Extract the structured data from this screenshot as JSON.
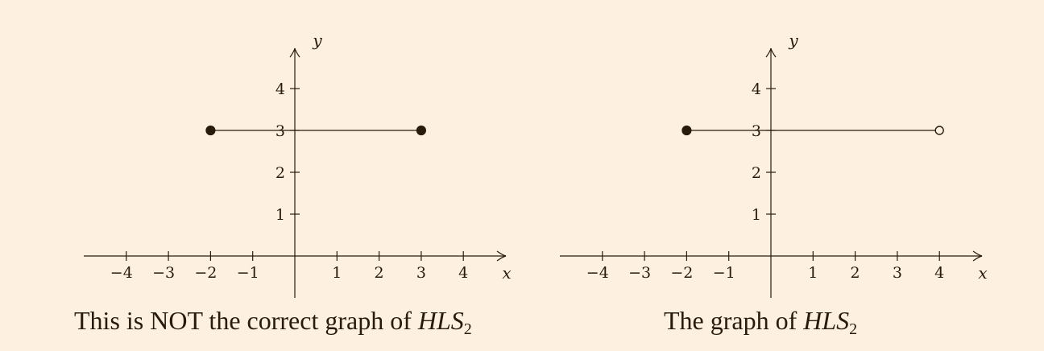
{
  "chart_data": [
    {
      "type": "line",
      "title": "",
      "xlabel": "x",
      "ylabel": "y",
      "xlim": [
        -4.95,
        5
      ],
      "ylim": [
        -1,
        5.2
      ],
      "xticks": [
        -4,
        -3,
        -2,
        -1,
        1,
        2,
        3,
        4
      ],
      "xtick_labels": [
        "−4",
        "−3",
        "−2",
        "−1",
        "1",
        "2",
        "3",
        "4"
      ],
      "yticks": [
        1,
        2,
        3,
        4
      ],
      "ytick_labels": [
        "1",
        "2",
        "3",
        "4"
      ],
      "grid": false,
      "segments": [
        {
          "x": [
            -2,
            3
          ],
          "y": [
            3,
            3
          ],
          "start": "closed",
          "end": "closed"
        }
      ],
      "caption": {
        "text": "This is NOT the correct graph of ",
        "math": "HLS",
        "sub": "2"
      }
    },
    {
      "type": "line",
      "title": "",
      "xlabel": "x",
      "ylabel": "y",
      "xlim": [
        -4.95,
        5
      ],
      "ylim": [
        -1,
        5.2
      ],
      "xticks": [
        -4,
        -3,
        -2,
        -1,
        1,
        2,
        3,
        4
      ],
      "xtick_labels": [
        "−4",
        "−3",
        "−2",
        "−1",
        "1",
        "2",
        "3",
        "4"
      ],
      "yticks": [
        1,
        2,
        3,
        4
      ],
      "ytick_labels": [
        "1",
        "2",
        "3",
        "4"
      ],
      "grid": false,
      "segments": [
        {
          "x": [
            -2,
            4
          ],
          "y": [
            3,
            3
          ],
          "start": "closed",
          "end": "open"
        }
      ],
      "caption": {
        "text": "The graph of ",
        "math": "HLS",
        "sub": "2"
      }
    }
  ]
}
